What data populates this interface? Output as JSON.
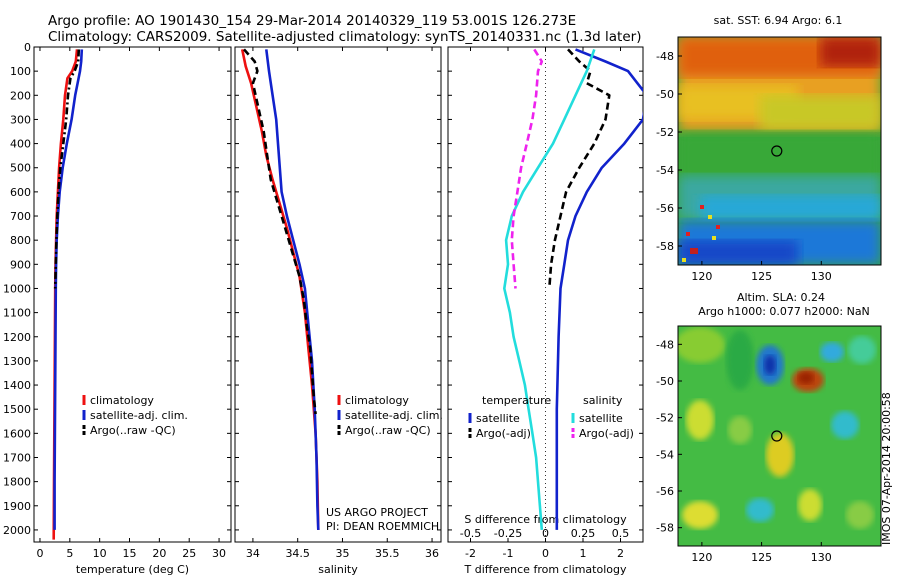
{
  "header": {
    "line1": "Argo profile: AO 1901430_154 29-Mar-2014 20140329_119 53.001S 126.273E",
    "line2": "Climatology: CARS2009. Satellite-adjusted climatology: synTS_20140331.nc (1.3d later)"
  },
  "credit": {
    "project": "US ARGO PROJECT",
    "pi": "PI: DEAN ROEMMICH"
  },
  "watermark": "IMOS 07-Apr-2014 20:00:58",
  "colors": {
    "climatology": "#ee1111",
    "satellite": "#1122cc",
    "argo": "#000000",
    "salinity_sat": "#22dddd",
    "salinity_argo": "#ee22ee"
  },
  "chart_data": [
    {
      "type": "line",
      "panel": "temperature",
      "xlabel": "temperature (deg C)",
      "ylabel": "",
      "xlim": [
        -1,
        32
      ],
      "ylim": [
        2050,
        0
      ],
      "xticks": [
        0,
        5,
        10,
        15,
        20,
        25,
        30
      ],
      "yticks": [
        0,
        100,
        200,
        300,
        400,
        500,
        600,
        700,
        800,
        900,
        1000,
        1100,
        1200,
        1300,
        1400,
        1500,
        1600,
        1700,
        1800,
        1900,
        2000
      ],
      "legend": [
        "climatology",
        "satellite-adj. clim.",
        "Argo(..raw -QC)"
      ],
      "series": [
        {
          "name": "climatology",
          "color": "#ee1111",
          "style": "solid",
          "points": [
            [
              6.2,
              10
            ],
            [
              6.0,
              60
            ],
            [
              5.4,
              100
            ],
            [
              4.6,
              130
            ],
            [
              4.2,
              200
            ],
            [
              3.9,
              300
            ],
            [
              3.5,
              400
            ],
            [
              3.2,
              500
            ],
            [
              3.0,
              600
            ],
            [
              2.8,
              700
            ],
            [
              2.7,
              800
            ],
            [
              2.6,
              900
            ],
            [
              2.55,
              1000
            ],
            [
              2.5,
              1200
            ],
            [
              2.45,
              1400
            ],
            [
              2.4,
              1600
            ],
            [
              2.35,
              1800
            ],
            [
              2.3,
              2040
            ]
          ]
        },
        {
          "name": "satellite-adj. clim.",
          "color": "#1122cc",
          "style": "solid",
          "points": [
            [
              7.0,
              10
            ],
            [
              6.9,
              60
            ],
            [
              6.7,
              100
            ],
            [
              6.3,
              150
            ],
            [
              5.9,
              200
            ],
            [
              5.3,
              300
            ],
            [
              4.5,
              400
            ],
            [
              3.8,
              500
            ],
            [
              3.3,
              600
            ],
            [
              3.0,
              700
            ],
            [
              2.8,
              800
            ],
            [
              2.7,
              900
            ],
            [
              2.65,
              1000
            ],
            [
              2.6,
              1200
            ],
            [
              2.55,
              1400
            ],
            [
              2.5,
              1600
            ],
            [
              2.45,
              1800
            ],
            [
              2.45,
              2000
            ]
          ]
        },
        {
          "name": "Argo(..raw -QC)",
          "color": "#000000",
          "style": "dashdot",
          "points": [
            [
              6.5,
              10
            ],
            [
              6.4,
              60
            ],
            [
              5.8,
              100
            ],
            [
              5.1,
              130
            ],
            [
              4.7,
              200
            ],
            [
              4.4,
              300
            ],
            [
              3.9,
              400
            ],
            [
              3.4,
              500
            ],
            [
              3.1,
              600
            ],
            [
              2.9,
              700
            ],
            [
              2.75,
              800
            ],
            [
              2.65,
              900
            ],
            [
              2.55,
              1000
            ]
          ]
        }
      ]
    },
    {
      "type": "line",
      "panel": "salinity",
      "xlabel": "salinity",
      "ylabel": "",
      "xlim": [
        33.8,
        36.1
      ],
      "ylim": [
        2050,
        0
      ],
      "xticks": [
        34,
        34.5,
        35,
        35.5,
        36
      ],
      "xtick_labels": [
        "34",
        "34.5",
        "35",
        "35.5",
        "36"
      ],
      "yticks": [
        0,
        100,
        200,
        300,
        400,
        500,
        600,
        700,
        800,
        900,
        1000,
        1100,
        1200,
        1300,
        1400,
        1500,
        1600,
        1700,
        1800,
        1900,
        2000
      ],
      "legend": [
        "climatology",
        "satellite-adj. clim.",
        "Argo(..raw -QC)"
      ],
      "series": [
        {
          "name": "climatology",
          "color": "#ee1111",
          "style": "solid",
          "points": [
            [
              33.88,
              10
            ],
            [
              33.92,
              80
            ],
            [
              33.98,
              150
            ],
            [
              34.04,
              250
            ],
            [
              34.1,
              350
            ],
            [
              34.15,
              450
            ],
            [
              34.22,
              550
            ],
            [
              34.3,
              650
            ],
            [
              34.38,
              750
            ],
            [
              34.45,
              850
            ],
            [
              34.52,
              950
            ],
            [
              34.58,
              1100
            ],
            [
              34.62,
              1250
            ],
            [
              34.66,
              1400
            ],
            [
              34.7,
              1600
            ],
            [
              34.72,
              1800
            ],
            [
              34.73,
              2000
            ]
          ]
        },
        {
          "name": "satellite-adj. clim.",
          "color": "#1122cc",
          "style": "solid",
          "points": [
            [
              34.15,
              10
            ],
            [
              34.18,
              100
            ],
            [
              34.22,
              200
            ],
            [
              34.26,
              300
            ],
            [
              34.28,
              400
            ],
            [
              34.3,
              500
            ],
            [
              34.32,
              600
            ],
            [
              34.38,
              700
            ],
            [
              34.45,
              800
            ],
            [
              34.52,
              900
            ],
            [
              34.58,
              1000
            ],
            [
              34.62,
              1150
            ],
            [
              34.66,
              1300
            ],
            [
              34.69,
              1500
            ],
            [
              34.71,
              1700
            ],
            [
              34.72,
              1900
            ],
            [
              34.73,
              2000
            ]
          ]
        },
        {
          "name": "Argo(..raw -QC)",
          "color": "#000000",
          "style": "dashed",
          "points": [
            [
              33.9,
              10
            ],
            [
              34.02,
              60
            ],
            [
              34.05,
              100
            ],
            [
              34.0,
              150
            ],
            [
              34.06,
              250
            ],
            [
              34.12,
              350
            ],
            [
              34.16,
              450
            ],
            [
              34.2,
              550
            ],
            [
              34.28,
              650
            ],
            [
              34.36,
              750
            ],
            [
              34.44,
              850
            ],
            [
              34.52,
              950
            ],
            [
              34.57,
              1050
            ],
            [
              34.6,
              1150
            ],
            [
              34.64,
              1250
            ],
            [
              34.66,
              1350
            ],
            [
              34.68,
              1450
            ],
            [
              34.7,
              1520
            ]
          ]
        }
      ]
    },
    {
      "type": "line",
      "panel": "difference",
      "xlabel": "T difference from climatology",
      "x2label": "S difference from climatology",
      "xlim": [
        -2.6,
        2.6
      ],
      "ylim": [
        2050,
        0
      ],
      "xticks": [
        -2,
        -1,
        0,
        1,
        2
      ],
      "x2ticks": [
        -0.5,
        -0.25,
        0,
        0.25,
        0.5
      ],
      "x2tick_labels": [
        "-0.5",
        "-0.25",
        "0",
        "0.25",
        "0.5"
      ],
      "yticks": [
        0,
        100,
        200,
        300,
        400,
        500,
        600,
        700,
        800,
        900,
        1000,
        1100,
        1200,
        1300,
        1400,
        1500,
        1600,
        1700,
        1800,
        1900,
        2000
      ],
      "legend_temperature_title": "temperature",
      "legend_salinity_title": "salinity",
      "legend": [
        "satellite",
        "Argo(-adj)",
        "satellite",
        "Argo(-adj)"
      ],
      "series": [
        {
          "name": "satellite",
          "group": "temperature",
          "color": "#1122cc",
          "style": "solid",
          "points": [
            [
              0.8,
              10
            ],
            [
              1.6,
              60
            ],
            [
              2.2,
              100
            ],
            [
              2.7,
              200
            ],
            [
              2.6,
              300
            ],
            [
              2.1,
              400
            ],
            [
              1.5,
              500
            ],
            [
              1.1,
              600
            ],
            [
              0.8,
              700
            ],
            [
              0.6,
              800
            ],
            [
              0.5,
              900
            ],
            [
              0.4,
              1000
            ],
            [
              0.35,
              1200
            ],
            [
              0.3,
              1500
            ],
            [
              0.3,
              1800
            ],
            [
              0.3,
              2000
            ]
          ]
        },
        {
          "name": "Argo(-adj)",
          "group": "temperature",
          "color": "#000000",
          "style": "dashed",
          "points": [
            [
              0.6,
              10
            ],
            [
              0.9,
              60
            ],
            [
              1.2,
              100
            ],
            [
              1.1,
              150
            ],
            [
              1.7,
              200
            ],
            [
              1.6,
              300
            ],
            [
              1.3,
              400
            ],
            [
              0.9,
              500
            ],
            [
              0.55,
              600
            ],
            [
              0.4,
              700
            ],
            [
              0.25,
              800
            ],
            [
              0.15,
              900
            ],
            [
              0.1,
              1000
            ]
          ]
        },
        {
          "name": "satellite",
          "group": "salinity",
          "color": "#22dddd",
          "style": "solid",
          "points": [
            [
              1.3,
              10
            ],
            [
              1.1,
              100
            ],
            [
              0.8,
              200
            ],
            [
              0.5,
              300
            ],
            [
              0.2,
              400
            ],
            [
              -0.2,
              500
            ],
            [
              -0.6,
              600
            ],
            [
              -0.9,
              700
            ],
            [
              -1.05,
              800
            ],
            [
              -1.0,
              900
            ],
            [
              -1.1,
              1000
            ],
            [
              -0.95,
              1100
            ],
            [
              -0.85,
              1200
            ],
            [
              -0.7,
              1300
            ],
            [
              -0.55,
              1400
            ],
            [
              -0.45,
              1500
            ],
            [
              -0.35,
              1600
            ],
            [
              -0.25,
              1700
            ],
            [
              -0.15,
              1900
            ],
            [
              -0.1,
              2000
            ]
          ]
        },
        {
          "name": "Argo(-adj)",
          "group": "salinity",
          "color": "#ee22ee",
          "style": "dashed",
          "points": [
            [
              -0.3,
              10
            ],
            [
              -0.1,
              60
            ],
            [
              -0.2,
              100
            ],
            [
              -0.25,
              200
            ],
            [
              -0.35,
              300
            ],
            [
              -0.5,
              400
            ],
            [
              -0.65,
              500
            ],
            [
              -0.75,
              600
            ],
            [
              -0.85,
              700
            ],
            [
              -0.9,
              800
            ],
            [
              -0.85,
              900
            ],
            [
              -0.8,
              1000
            ]
          ]
        }
      ]
    },
    {
      "type": "heatmap",
      "panel": "sst-map",
      "title": "sat. SST: 6.94 Argo: 6.1",
      "xlim": [
        118,
        135
      ],
      "ylim": [
        -59,
        -47
      ],
      "xticks": [
        120,
        125,
        130
      ],
      "yticks": [
        -48,
        -50,
        -52,
        -54,
        -56,
        -58
      ],
      "marker": [
        126.273,
        -53.001
      ]
    },
    {
      "type": "heatmap",
      "panel": "sla-map",
      "title": "Altim. SLA: 0.24",
      "subtitle": "Argo h1000: 0.077 h2000: NaN",
      "xlim": [
        118,
        135
      ],
      "ylim": [
        -59,
        -47
      ],
      "xticks": [
        120,
        125,
        130
      ],
      "yticks": [
        -48,
        -50,
        -52,
        -54,
        -56,
        -58
      ],
      "marker": [
        126.273,
        -53.001
      ]
    }
  ]
}
